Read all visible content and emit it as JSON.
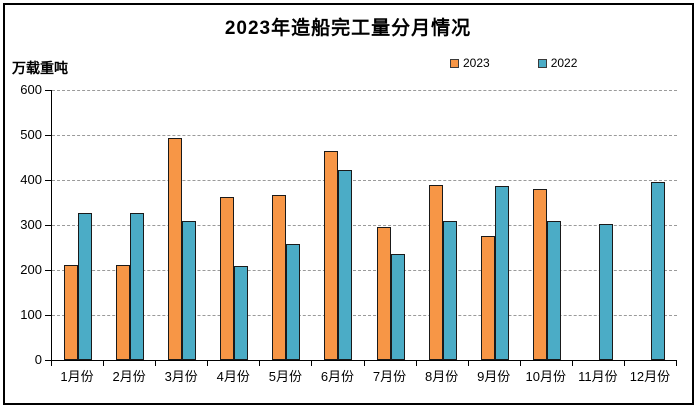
{
  "chart_data": {
    "type": "bar",
    "title": "2023年造船完工量分月情况",
    "ylabel": "万载重吨",
    "xlabel": "",
    "categories": [
      "1月份",
      "2月份",
      "3月份",
      "4月份",
      "5月份",
      "6月份",
      "7月份",
      "8月份",
      "9月份",
      "10月份",
      "11月份",
      "12月份"
    ],
    "series": [
      {
        "name": "2023",
        "color": "#F79646",
        "values": [
          211,
          211,
          494,
          363,
          367,
          465,
          296,
          388,
          276,
          381,
          null,
          null
        ]
      },
      {
        "name": "2022",
        "color": "#4BACC6",
        "values": [
          326,
          327,
          308,
          210,
          257,
          422,
          235,
          308,
          386,
          308,
          302,
          396
        ]
      }
    ],
    "ylim": [
      0,
      600
    ],
    "yticks": [
      0,
      100,
      200,
      300,
      400,
      500,
      600
    ],
    "grid": "horizontal-dashed",
    "legend_position": "top-right",
    "bar_outline_color": "#1a1a1a",
    "gridline_color": "#9a9a9a"
  }
}
